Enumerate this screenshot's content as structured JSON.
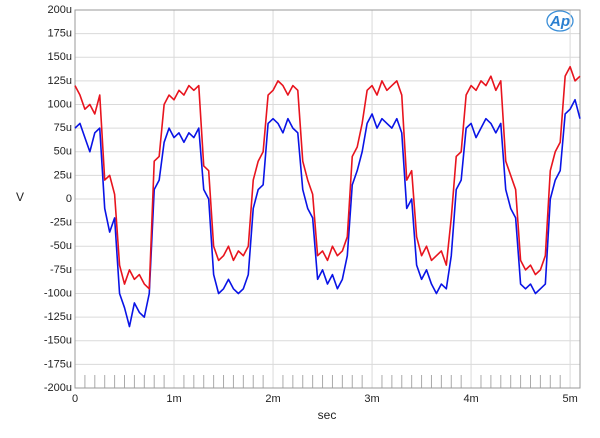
{
  "chart_data": {
    "type": "line",
    "logo": "Ap",
    "ylabel": "V",
    "xlabel": "sec",
    "xlim": [
      0,
      0.0051
    ],
    "ylim": [
      -0.0002,
      0.0002
    ],
    "xticks": [
      0,
      {
        "value": 0.001,
        "label": "1m"
      },
      {
        "value": 0.002,
        "label": "2m"
      },
      {
        "value": 0.003,
        "label": "3m"
      },
      {
        "value": 0.004,
        "label": "4m"
      },
      {
        "value": 0.005,
        "label": "5m"
      }
    ],
    "yticks": [
      {
        "value": 0.0002,
        "label": "200u"
      },
      {
        "value": 0.000175,
        "label": "175u"
      },
      {
        "value": 0.00015,
        "label": "150u"
      },
      {
        "value": 0.000125,
        "label": "125u"
      },
      {
        "value": 0.0001,
        "label": "100u"
      },
      {
        "value": 7.5e-05,
        "label": "75u"
      },
      {
        "value": 5e-05,
        "label": "50u"
      },
      {
        "value": 2.5e-05,
        "label": "25u"
      },
      0,
      {
        "value": -2.5e-05,
        "label": "-25u"
      },
      {
        "value": -5e-05,
        "label": "-50u"
      },
      {
        "value": -7.5e-05,
        "label": "-75u"
      },
      {
        "value": -0.0001,
        "label": "-100u"
      },
      {
        "value": -0.000125,
        "label": "-125u"
      },
      {
        "value": -0.00015,
        "label": "-150u"
      },
      {
        "value": -0.000175,
        "label": "-175u"
      },
      {
        "value": -0.0002,
        "label": "-200u"
      }
    ],
    "grid": true,
    "x": [
      0,
      5e-05,
      0.0001,
      0.00015,
      0.0002,
      0.00025,
      0.0003,
      0.00035,
      0.0004,
      0.00045,
      0.0005,
      0.00055,
      0.0006,
      0.00065,
      0.0007,
      0.00075,
      0.0008,
      0.00085,
      0.0009,
      0.00095,
      0.001,
      0.00105,
      0.0011,
      0.00115,
      0.0012,
      0.00125,
      0.0013,
      0.00135,
      0.0014,
      0.00145,
      0.0015,
      0.00155,
      0.0016,
      0.00165,
      0.0017,
      0.00175,
      0.0018,
      0.00185,
      0.0019,
      0.00195,
      0.002,
      0.00205,
      0.0021,
      0.00215,
      0.0022,
      0.00225,
      0.0023,
      0.00235,
      0.0024,
      0.00245,
      0.0025,
      0.00255,
      0.0026,
      0.00265,
      0.0027,
      0.00275,
      0.0028,
      0.00285,
      0.0029,
      0.00295,
      0.003,
      0.00305,
      0.0031,
      0.00315,
      0.0032,
      0.00325,
      0.0033,
      0.00335,
      0.0034,
      0.00345,
      0.0035,
      0.00355,
      0.0036,
      0.00365,
      0.0037,
      0.00375,
      0.0038,
      0.00385,
      0.0039,
      0.00395,
      0.004,
      0.00405,
      0.0041,
      0.00415,
      0.0042,
      0.00425,
      0.0043,
      0.00435,
      0.0044,
      0.00445,
      0.0045,
      0.00455,
      0.0046,
      0.00465,
      0.0047,
      0.00475,
      0.0048,
      0.00485,
      0.0049,
      0.00495,
      0.005,
      0.00505,
      0.0051
    ],
    "series": [
      {
        "color": "#0a14e6",
        "values": [
          7.5e-05,
          8e-05,
          6.5e-05,
          5e-05,
          7e-05,
          7.5e-05,
          -1e-05,
          -3.5e-05,
          -2e-05,
          -0.0001,
          -0.000115,
          -0.000135,
          -0.00011,
          -0.00012,
          -0.000125,
          -0.0001,
          1e-05,
          2e-05,
          6e-05,
          7.5e-05,
          6.5e-05,
          7e-05,
          6e-05,
          7e-05,
          6.5e-05,
          7.5e-05,
          1e-05,
          0,
          -8e-05,
          -0.0001,
          -9.5e-05,
          -8.5e-05,
          -9.5e-05,
          -0.0001,
          -9.5e-05,
          -8e-05,
          -1e-05,
          1e-05,
          1.5e-05,
          8e-05,
          8.5e-05,
          8e-05,
          7e-05,
          8.5e-05,
          7.5e-05,
          7e-05,
          1e-05,
          -1e-05,
          -2e-05,
          -8.5e-05,
          -7.5e-05,
          -9e-05,
          -8e-05,
          -9.5e-05,
          -8.5e-05,
          -6e-05,
          1.5e-05,
          3e-05,
          5e-05,
          8e-05,
          9e-05,
          7.5e-05,
          8.5e-05,
          8e-05,
          7.5e-05,
          8.5e-05,
          7e-05,
          -1e-05,
          0,
          -7e-05,
          -8.5e-05,
          -7.5e-05,
          -9e-05,
          -0.0001,
          -9e-05,
          -9.5e-05,
          -6e-05,
          1e-05,
          2e-05,
          7.5e-05,
          8e-05,
          6.5e-05,
          7.5e-05,
          8.5e-05,
          8e-05,
          7e-05,
          8e-05,
          1e-05,
          -1e-05,
          -2e-05,
          -9e-05,
          -9.5e-05,
          -9e-05,
          -0.0001,
          -9.5e-05,
          -9e-05,
          0,
          2e-05,
          3e-05,
          9e-05,
          9.5e-05,
          0.000105,
          8.5e-05
        ]
      },
      {
        "color": "#e8141e",
        "values": [
          0.00012,
          0.00011,
          9.5e-05,
          0.0001,
          9e-05,
          0.00011,
          2e-05,
          2.5e-05,
          5e-06,
          -7e-05,
          -9e-05,
          -7.5e-05,
          -8.5e-05,
          -8e-05,
          -9e-05,
          -9.5e-05,
          4e-05,
          4.5e-05,
          0.0001,
          0.00011,
          0.000105,
          0.000115,
          0.00011,
          0.00012,
          0.000115,
          0.00012,
          3.5e-05,
          3e-05,
          -5e-05,
          -6.5e-05,
          -6e-05,
          -5e-05,
          -6.5e-05,
          -5.5e-05,
          -6e-05,
          -5e-05,
          2e-05,
          4e-05,
          5e-05,
          0.00011,
          0.000115,
          0.000125,
          0.00012,
          0.00011,
          0.00012,
          0.000115,
          4e-05,
          2e-05,
          5e-06,
          -6e-05,
          -5.5e-05,
          -6.5e-05,
          -5e-05,
          -6e-05,
          -5.5e-05,
          -4e-05,
          4.5e-05,
          5.5e-05,
          8e-05,
          0.000115,
          0.00012,
          0.00011,
          0.000125,
          0.000115,
          0.00012,
          0.000125,
          0.00011,
          2e-05,
          3e-05,
          -4e-05,
          -6e-05,
          -5e-05,
          -6.5e-05,
          -6e-05,
          -5.5e-05,
          -7e-05,
          -2e-05,
          4.5e-05,
          5e-05,
          0.00011,
          0.00012,
          0.000115,
          0.000125,
          0.00012,
          0.00013,
          0.000115,
          0.000125,
          4e-05,
          2.5e-05,
          1e-05,
          -6.5e-05,
          -7.5e-05,
          -7e-05,
          -8e-05,
          -7.5e-05,
          -6e-05,
          3e-05,
          5e-05,
          6e-05,
          0.00013,
          0.00014,
          0.000125,
          0.00013
        ]
      }
    ]
  }
}
